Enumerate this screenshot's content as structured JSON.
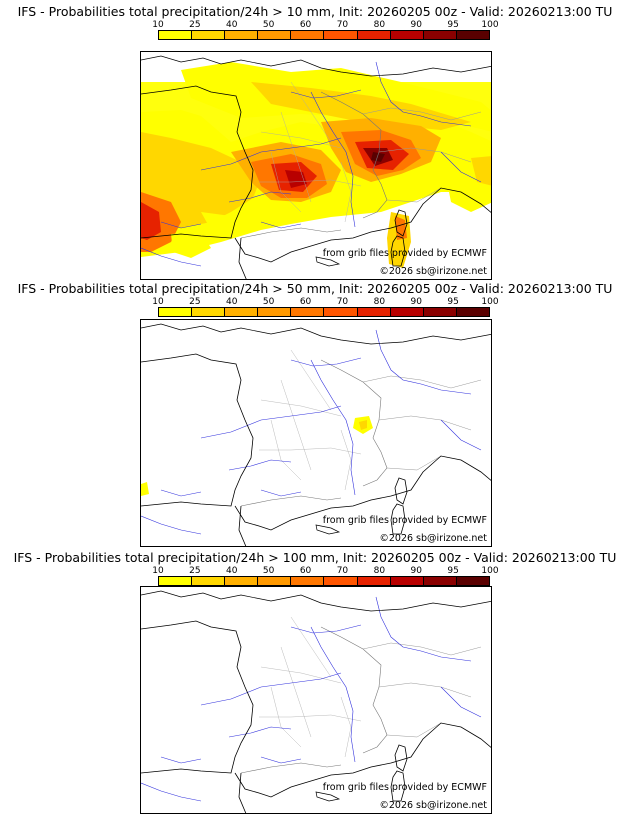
{
  "panels": [
    {
      "title": "IFS - Probabilities total precipitation/24h > 10 mm, Init: 20260205 00z - Valid: 20260213:00 TU"
    },
    {
      "title": "IFS - Probabilities total precipitation/24h > 50 mm, Init: 20260205 00z - Valid: 20260213:00 TU"
    },
    {
      "title": "IFS - Probabilities total precipitation/24h > 100 mm, Init: 20260205 00z - Valid: 20260213:00 TU"
    }
  ],
  "legend": {
    "ticks": [
      "10",
      "25",
      "40",
      "50",
      "60",
      "70",
      "80",
      "90",
      "95",
      "100"
    ],
    "colors": [
      "#ffff00",
      "#ffd700",
      "#ffb000",
      "#ff9900",
      "#ff7700",
      "#ff5500",
      "#e62200",
      "#b80000",
      "#8a0000",
      "#5a0000"
    ]
  },
  "credits": {
    "source": "from grib files provided by ECMWF",
    "copyright": "©2026 sb@irizone.net"
  }
}
